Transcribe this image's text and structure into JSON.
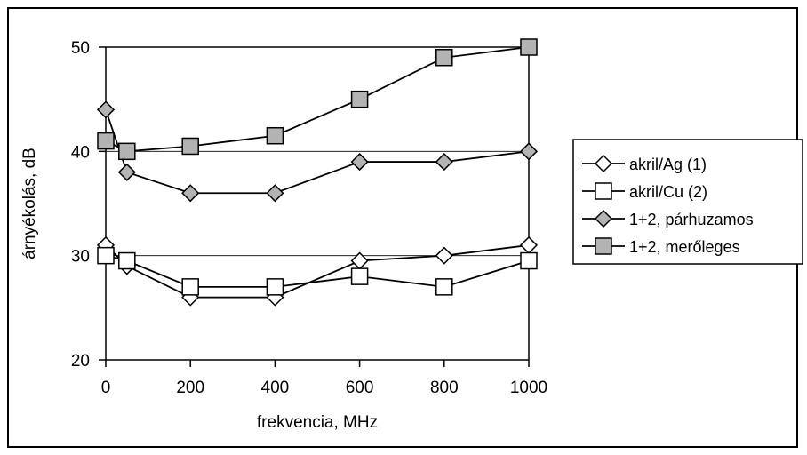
{
  "chart_data": {
    "type": "line",
    "title": "",
    "xlabel": "frekvencia, MHz",
    "ylabel": "árnyékolás, dB",
    "xlim": [
      0,
      1000
    ],
    "ylim": [
      20,
      50
    ],
    "xticks": [
      0,
      200,
      400,
      600,
      800,
      1000
    ],
    "yticks": [
      20,
      30,
      40,
      50
    ],
    "gridlines_y": [
      30,
      40,
      50
    ],
    "legend_position": "right",
    "series": [
      {
        "name": "akril/Ag (1)",
        "marker": "diamond",
        "fill": "#ffffff",
        "x": [
          0,
          50,
          200,
          400,
          600,
          800,
          1000
        ],
        "y": [
          31,
          29,
          26,
          26,
          29.5,
          30,
          31
        ]
      },
      {
        "name": "akril/Cu (2)",
        "marker": "square",
        "fill": "#ffffff",
        "x": [
          0,
          50,
          200,
          400,
          600,
          800,
          1000
        ],
        "y": [
          30,
          29.5,
          27,
          27,
          28,
          27,
          29.5
        ]
      },
      {
        "name": "1+2, párhuzamos",
        "marker": "diamond",
        "fill": "#b3b3b3",
        "x": [
          0,
          50,
          200,
          400,
          600,
          800,
          1000
        ],
        "y": [
          44,
          38,
          36,
          36,
          39,
          39,
          40
        ]
      },
      {
        "name": "1+2, merőleges",
        "marker": "square",
        "fill": "#b3b3b3",
        "x": [
          0,
          50,
          200,
          400,
          600,
          800,
          1000
        ],
        "y": [
          41,
          40,
          40.5,
          41.5,
          45,
          49,
          50
        ]
      }
    ]
  }
}
